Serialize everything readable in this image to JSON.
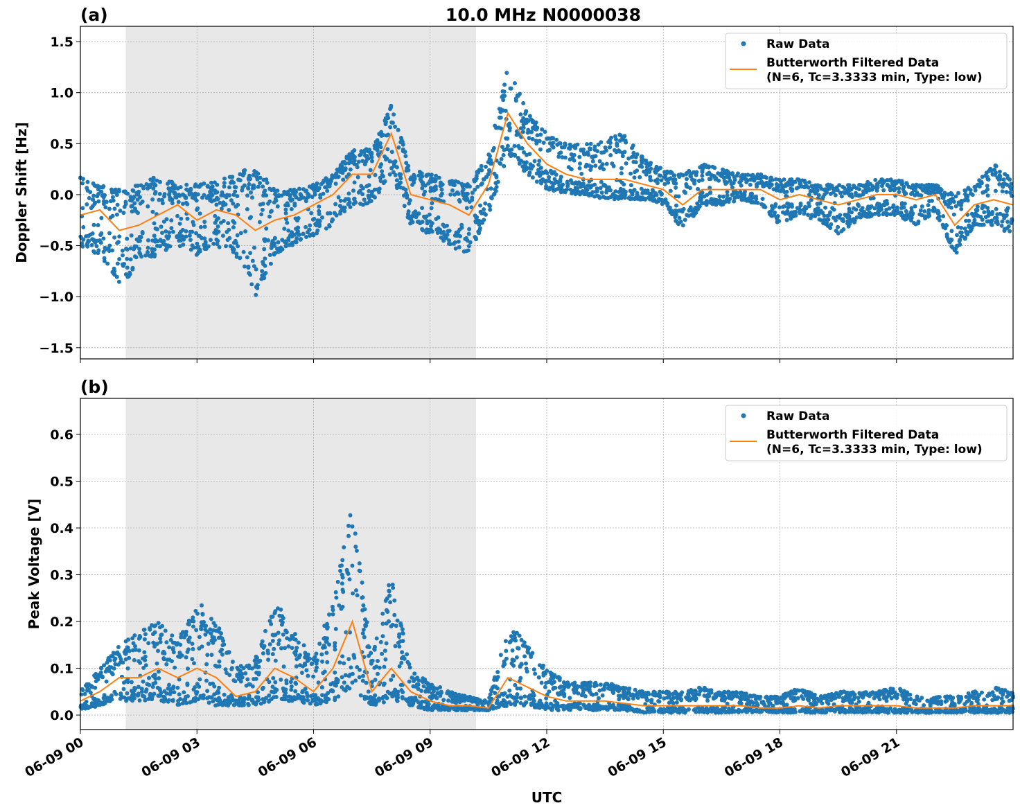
{
  "title": "10.0 MHz N0000038",
  "xlabel": "UTC",
  "x_tick_labels": [
    "06-09 00",
    "06-09 03",
    "06-09 06",
    "06-09 09",
    "06-09 12",
    "06-09 15",
    "06-09 18",
    "06-09 21"
  ],
  "colors": {
    "raw": "#1f77b4",
    "filtered": "#ff7f0e",
    "shade": "#e8e8e8",
    "grid": "#b0b0b0"
  },
  "chart_data": [
    {
      "type": "scatter",
      "panel_label": "(a)",
      "ylabel": "Doppler Shift [Hz]",
      "xlim": [
        "06-09 00:00",
        "06-10 00:00"
      ],
      "ylim": [
        -1.61,
        1.65
      ],
      "y_ticks": [
        -1.5,
        -1.0,
        -0.5,
        0.0,
        0.5,
        1.0,
        1.5
      ],
      "y_tick_labels": [
        "−1.5",
        "−1.0",
        "−0.5",
        "0.0",
        "0.5",
        "1.0",
        "1.5"
      ],
      "grid": true,
      "legend_placement": "upper-right",
      "legend": [
        "Raw Data",
        "Butterworth Filtered Data",
        "(N=6, Tc=3.3333 min, Type: low)"
      ],
      "shaded_span": [
        "06-09 01:10",
        "06-09 10:11"
      ],
      "x": [
        "00:00",
        "00:30",
        "01:00",
        "01:30",
        "02:00",
        "02:30",
        "03:00",
        "03:30",
        "04:00",
        "04:30",
        "05:00",
        "05:30",
        "06:00",
        "06:30",
        "07:00",
        "07:30",
        "08:00",
        "08:30",
        "09:00",
        "09:30",
        "10:00",
        "10:30",
        "11:00",
        "11:30",
        "12:00",
        "12:30",
        "13:00",
        "13:30",
        "14:00",
        "14:30",
        "15:00",
        "15:30",
        "16:00",
        "16:30",
        "17:00",
        "17:30",
        "18:00",
        "18:30",
        "19:00",
        "19:30",
        "20:00",
        "20:30",
        "21:00",
        "21:30",
        "22:00",
        "22:30",
        "23:00",
        "23:30",
        "24:00"
      ],
      "filtered": [
        -0.2,
        -0.15,
        -0.35,
        -0.3,
        -0.2,
        -0.1,
        -0.25,
        -0.15,
        -0.2,
        -0.35,
        -0.25,
        -0.2,
        -0.1,
        0.0,
        0.2,
        0.2,
        0.6,
        0.0,
        -0.05,
        -0.1,
        -0.2,
        0.1,
        0.8,
        0.5,
        0.3,
        0.2,
        0.15,
        0.15,
        0.15,
        0.1,
        0.05,
        -0.1,
        0.05,
        0.05,
        0.05,
        0.05,
        -0.05,
        0.0,
        -0.05,
        -0.1,
        -0.05,
        0.0,
        0.0,
        -0.05,
        0.0,
        -0.3,
        -0.1,
        -0.05,
        -0.1
      ],
      "raw_min": [
        -0.5,
        -0.6,
        -0.9,
        -0.7,
        -0.6,
        -0.5,
        -0.6,
        -0.5,
        -0.6,
        -1.0,
        -0.6,
        -0.5,
        -0.4,
        -0.3,
        -0.1,
        -0.1,
        0.2,
        -0.3,
        -0.4,
        -0.5,
        -0.6,
        -0.2,
        0.4,
        0.2,
        0.05,
        0.0,
        0.0,
        -0.05,
        -0.05,
        -0.05,
        -0.1,
        -0.35,
        -0.1,
        -0.1,
        -0.05,
        -0.1,
        -0.3,
        -0.2,
        -0.25,
        -0.4,
        -0.25,
        -0.2,
        -0.2,
        -0.3,
        -0.2,
        -0.6,
        -0.3,
        -0.3,
        -0.4
      ],
      "raw_max": [
        0.2,
        0.1,
        0.05,
        0.1,
        0.2,
        0.1,
        0.1,
        0.15,
        0.2,
        0.3,
        0.05,
        0.05,
        0.1,
        0.2,
        0.45,
        0.45,
        0.9,
        0.25,
        0.2,
        0.15,
        0.1,
        0.4,
        1.3,
        0.8,
        0.6,
        0.5,
        0.5,
        0.55,
        0.6,
        0.35,
        0.25,
        0.2,
        0.3,
        0.25,
        0.2,
        0.2,
        0.15,
        0.15,
        0.1,
        0.1,
        0.1,
        0.15,
        0.15,
        0.1,
        0.1,
        0.0,
        0.1,
        0.3,
        0.15
      ]
    },
    {
      "type": "scatter",
      "panel_label": "(b)",
      "ylabel": "Peak Voltage [V]",
      "xlim": [
        "06-09 00:00",
        "06-10 00:00"
      ],
      "ylim": [
        -0.031,
        0.677
      ],
      "y_ticks": [
        0.0,
        0.1,
        0.2,
        0.3,
        0.4,
        0.5,
        0.6
      ],
      "y_tick_labels": [
        "0.0",
        "0.1",
        "0.2",
        "0.3",
        "0.4",
        "0.5",
        "0.6"
      ],
      "grid": true,
      "legend_placement": "upper-right",
      "legend": [
        "Raw Data",
        "Butterworth Filtered Data",
        "(N=6, Tc=3.3333 min, Type: low)"
      ],
      "shaded_span": [
        "06-09 01:10",
        "06-09 10:11"
      ],
      "x": [
        "00:00",
        "00:30",
        "01:00",
        "01:30",
        "02:00",
        "02:30",
        "03:00",
        "03:30",
        "04:00",
        "04:30",
        "05:00",
        "05:30",
        "06:00",
        "06:30",
        "07:00",
        "07:30",
        "08:00",
        "08:30",
        "09:00",
        "09:30",
        "10:00",
        "10:30",
        "11:00",
        "11:30",
        "12:00",
        "12:30",
        "13:00",
        "13:30",
        "14:00",
        "14:30",
        "15:00",
        "15:30",
        "16:00",
        "16:30",
        "17:00",
        "17:30",
        "18:00",
        "18:30",
        "19:00",
        "19:30",
        "20:00",
        "20:30",
        "21:00",
        "21:30",
        "22:00",
        "22:30",
        "23:00",
        "23:30",
        "24:00"
      ],
      "filtered": [
        0.03,
        0.05,
        0.08,
        0.08,
        0.1,
        0.08,
        0.1,
        0.08,
        0.04,
        0.05,
        0.1,
        0.08,
        0.05,
        0.1,
        0.2,
        0.05,
        0.1,
        0.05,
        0.03,
        0.02,
        0.02,
        0.015,
        0.08,
        0.06,
        0.04,
        0.03,
        0.03,
        0.03,
        0.025,
        0.02,
        0.02,
        0.02,
        0.02,
        0.02,
        0.02,
        0.015,
        0.015,
        0.02,
        0.015,
        0.02,
        0.02,
        0.02,
        0.02,
        0.015,
        0.015,
        0.015,
        0.02,
        0.02,
        0.02
      ],
      "raw_min": [
        0.01,
        0.02,
        0.03,
        0.03,
        0.03,
        0.02,
        0.03,
        0.02,
        0.02,
        0.02,
        0.03,
        0.03,
        0.02,
        0.03,
        0.05,
        0.02,
        0.03,
        0.02,
        0.01,
        0.01,
        0.01,
        0.01,
        0.02,
        0.02,
        0.01,
        0.01,
        0.01,
        0.01,
        0.01,
        0.005,
        0.005,
        0.005,
        0.005,
        0.005,
        0.005,
        0.005,
        0.005,
        0.005,
        0.005,
        0.005,
        0.005,
        0.005,
        0.005,
        0.005,
        0.005,
        0.005,
        0.005,
        0.005,
        0.005
      ],
      "raw_max": [
        0.06,
        0.1,
        0.15,
        0.18,
        0.2,
        0.16,
        0.25,
        0.2,
        0.1,
        0.12,
        0.25,
        0.18,
        0.12,
        0.25,
        0.45,
        0.12,
        0.3,
        0.1,
        0.07,
        0.05,
        0.04,
        0.03,
        0.2,
        0.15,
        0.1,
        0.07,
        0.07,
        0.07,
        0.06,
        0.05,
        0.05,
        0.05,
        0.06,
        0.05,
        0.05,
        0.04,
        0.04,
        0.06,
        0.04,
        0.05,
        0.05,
        0.05,
        0.06,
        0.04,
        0.04,
        0.04,
        0.05,
        0.06,
        0.05
      ]
    }
  ]
}
